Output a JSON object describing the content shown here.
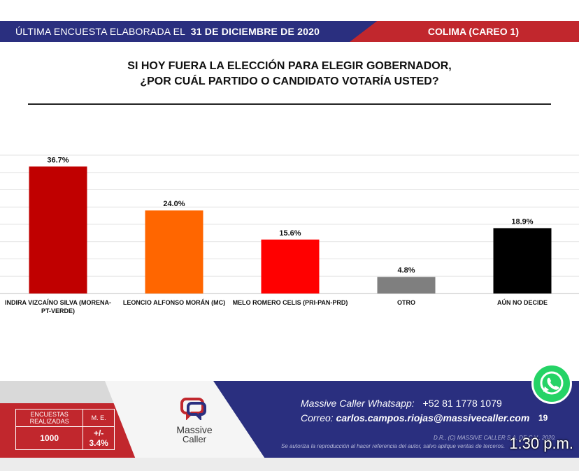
{
  "header": {
    "left_prefix": "ÚLTIMA ENCUESTA ELABORADA EL",
    "left_date": "31 DE DICIEMBRE DE 2020",
    "right_title": "COLIMA (CAREO 1)"
  },
  "question": {
    "line1": "SI HOY FUERA LA ELECCIÓN PARA ELEGIR GOBERNADOR,",
    "line2": "¿POR CUÁL PARTIDO O CANDIDATO VOTARÍA USTED?"
  },
  "chart_data": {
    "type": "bar",
    "title": "SI HOY FUERA LA ELECCIÓN PARA ELEGIR GOBERNADOR, ¿POR CUÁL PARTIDO O CANDIDATO VOTARÍA USTED?",
    "categories": [
      "INDIRA VIZCAÍNO SILVA (MORENA-PT-VERDE)",
      "LEONCIO ALFONSO MORÁN (MC)",
      "MELO ROMERO CELIS (PRI-PAN-PRD)",
      "OTRO",
      "AÚN NO DECIDE"
    ],
    "category_lines": [
      [
        "INDIRA VIZCAÍNO SILVA (MORENA-",
        "PT-VERDE)"
      ],
      [
        "LEONCIO ALFONSO MORÁN (MC)"
      ],
      [
        "MELO ROMERO CELIS (PRI-PAN-PRD)"
      ],
      [
        "OTRO"
      ],
      [
        "AÚN NO DECIDE"
      ]
    ],
    "values": [
      36.7,
      24.0,
      15.6,
      4.8,
      18.9
    ],
    "labels": [
      "36.7%",
      "24.0%",
      "15.6%",
      "4.8%",
      "18.9%"
    ],
    "colors": [
      "#c00000",
      "#ff6600",
      "#ff0000",
      "#7f7f7f",
      "#000000"
    ],
    "grid": true,
    "ylim": [
      0,
      40
    ],
    "xlabel": "",
    "ylabel": ""
  },
  "footer": {
    "stats_header_1": "ENCUESTAS REALIZADAS",
    "stats_header_2": "M. E.",
    "stats_value_1": "1000",
    "stats_value_2": "+/- 3.4%",
    "brand_line1": "Massive",
    "brand_line2": "Caller",
    "whatsapp_label": "Massive Caller Whatsapp:",
    "whatsapp_number": "+52 81 1778 1079",
    "email_label": "Correo:",
    "email": "carlos.campos.riojas@massivecaller.com",
    "page_number": "19",
    "legal_line1": "D.R., (C) MASSIVE CALLER S.A. DE C.V., 2020.",
    "legal_line2": "Se autoriza la reproducción al hacer referencia del autor, salvo aplique ventas de terceros."
  },
  "overlay": {
    "time": "1:30 p.m.",
    "whatsapp_icon": "whatsapp-icon"
  },
  "theme": {
    "blue": "#2a2f7f",
    "red": "#c1272d"
  }
}
